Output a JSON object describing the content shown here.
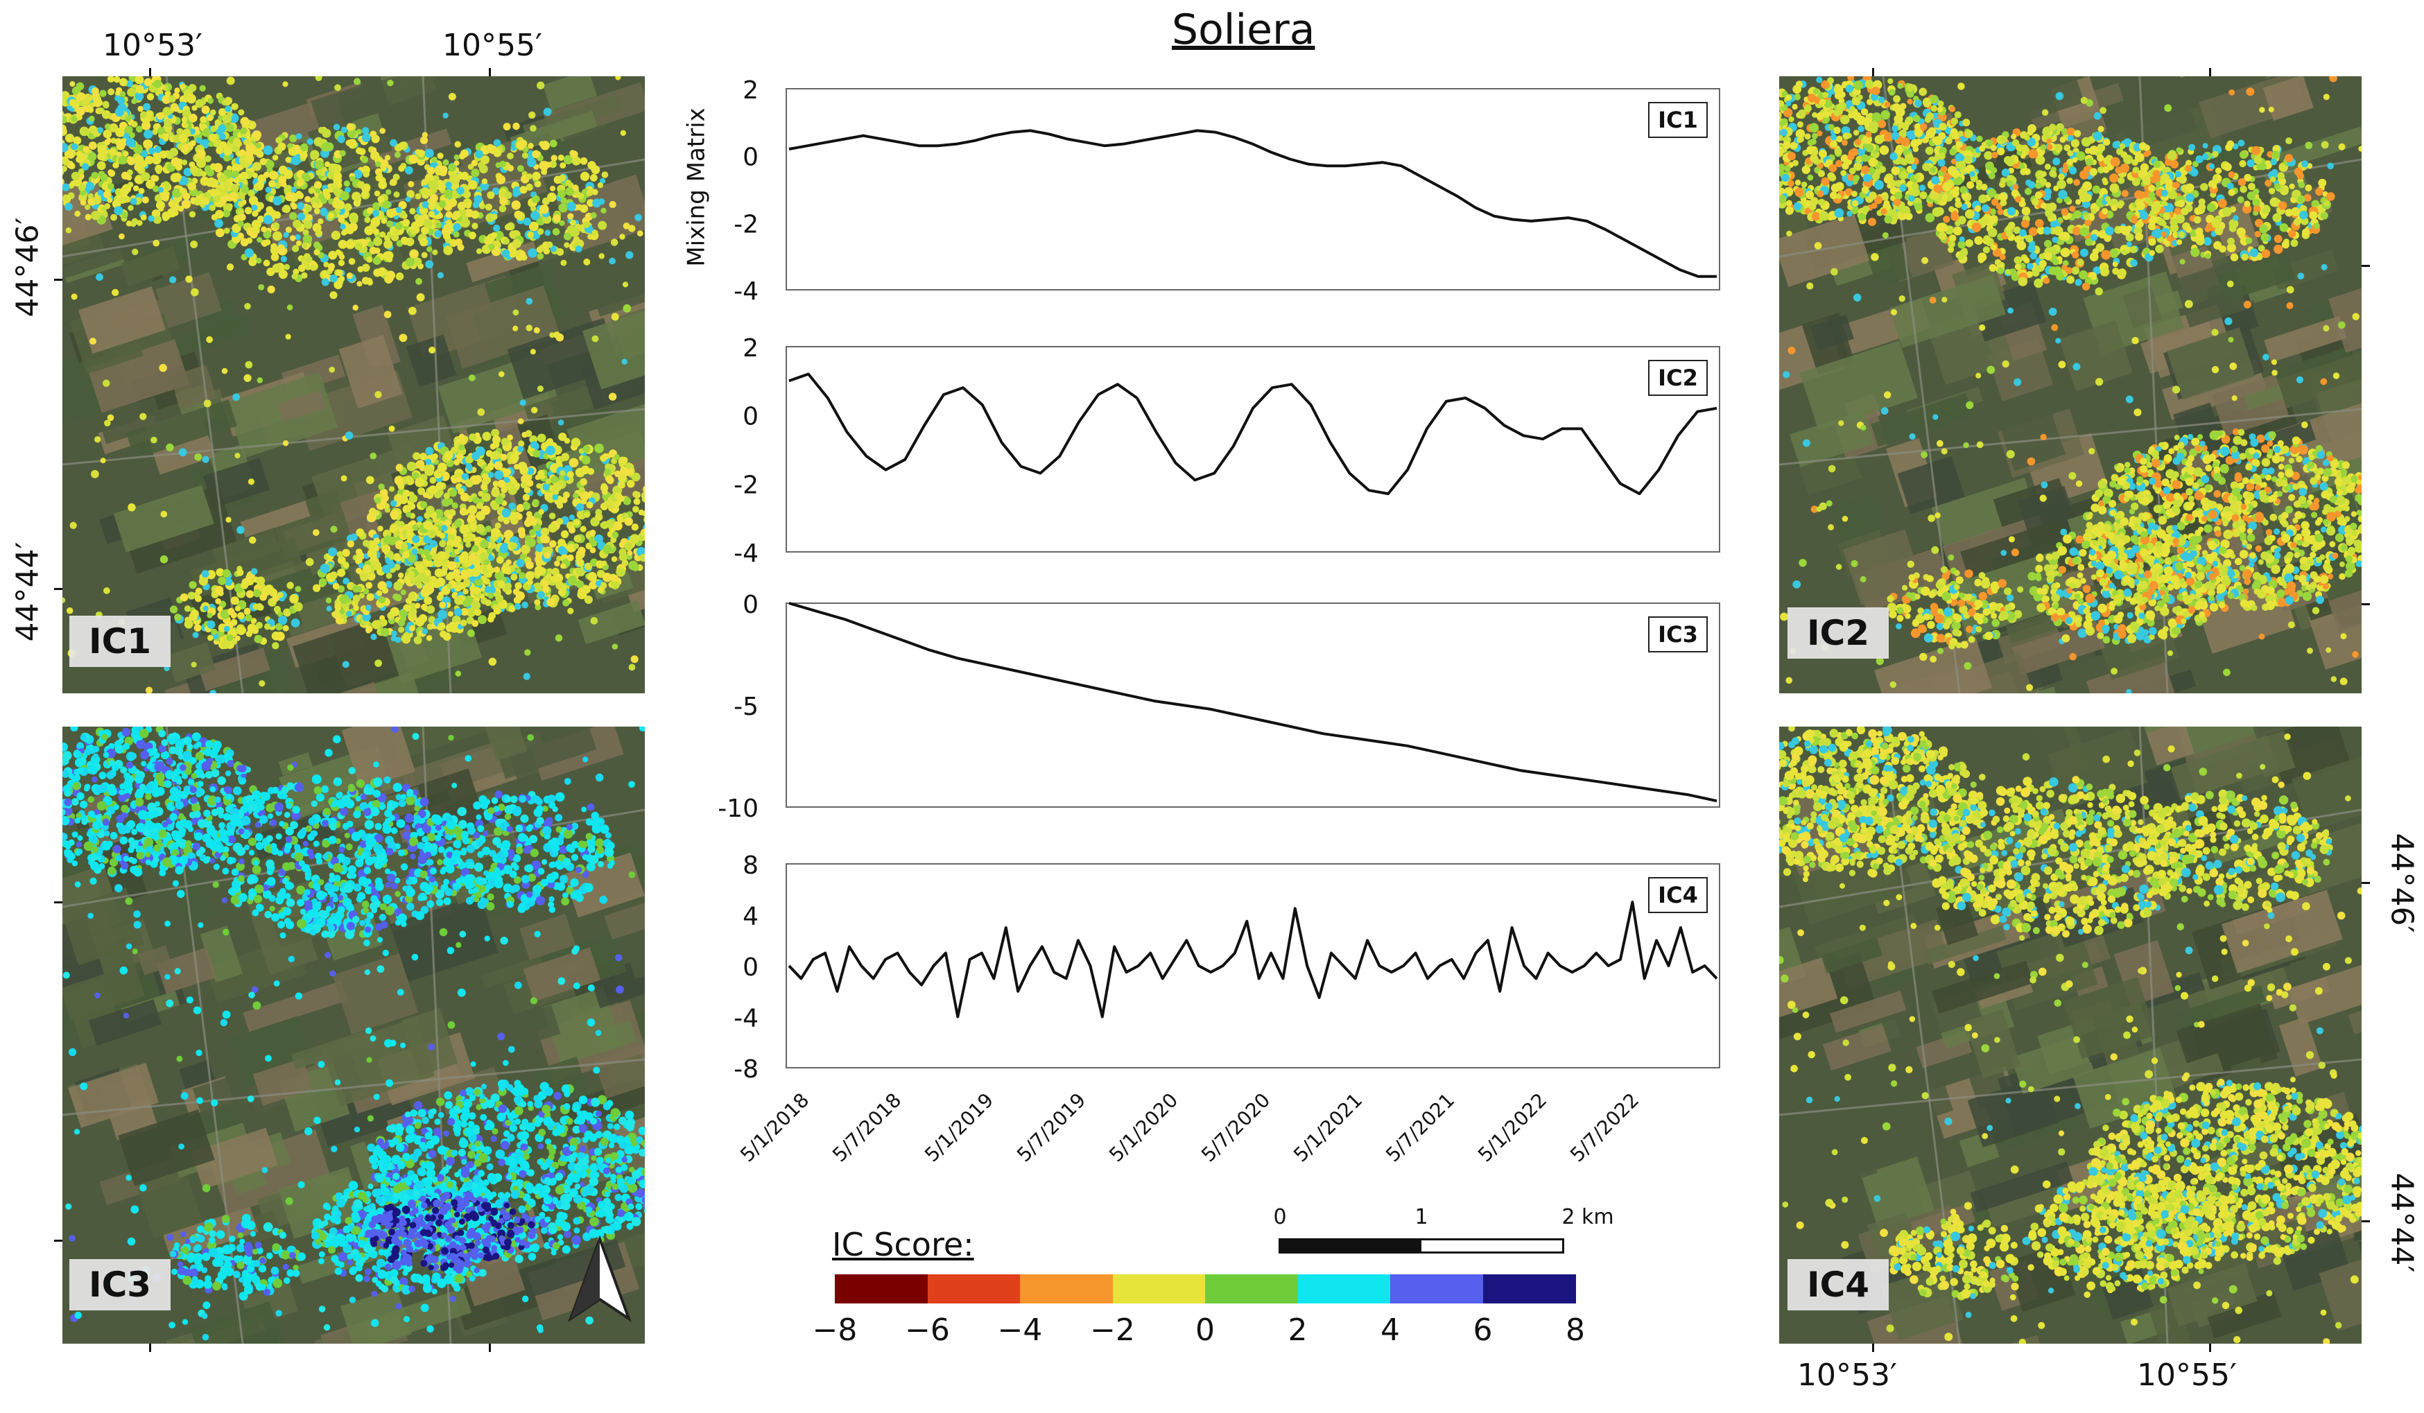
{
  "title": "Soliera",
  "maps": [
    {
      "id": "IC1",
      "label": "IC1"
    },
    {
      "id": "IC2",
      "label": "IC2"
    },
    {
      "id": "IC3",
      "label": "IC3"
    },
    {
      "id": "IC4",
      "label": "IC4"
    }
  ],
  "coords": {
    "lon_west": "10°53′",
    "lon_east": "10°55′",
    "lat_north": "44°46′",
    "lat_south": "44°44′"
  },
  "chart_data": {
    "type": "line",
    "ylabel": "Mixing Matrix",
    "x_tick_labels": [
      "5/1/2018",
      "5/7/2018",
      "5/1/2019",
      "5/7/2019",
      "5/1/2020",
      "5/7/2020",
      "5/1/2021",
      "5/7/2021",
      "5/1/2022",
      "5/7/2022"
    ],
    "panels": [
      {
        "name": "IC1",
        "ylim": [
          -4,
          2
        ],
        "yticks": [
          "2",
          "0",
          "-2",
          "-4"
        ],
        "values": [
          0.2,
          0.3,
          0.4,
          0.5,
          0.6,
          0.5,
          0.4,
          0.3,
          0.3,
          0.35,
          0.45,
          0.6,
          0.7,
          0.75,
          0.65,
          0.5,
          0.4,
          0.3,
          0.35,
          0.45,
          0.55,
          0.65,
          0.75,
          0.7,
          0.55,
          0.35,
          0.1,
          -0.1,
          -0.25,
          -0.3,
          -0.3,
          -0.25,
          -0.2,
          -0.3,
          -0.6,
          -0.9,
          -1.2,
          -1.55,
          -1.8,
          -1.9,
          -1.95,
          -1.9,
          -1.85,
          -1.95,
          -2.2,
          -2.5,
          -2.8,
          -3.1,
          -3.4,
          -3.6,
          -3.6
        ]
      },
      {
        "name": "IC2",
        "ylim": [
          -4,
          2
        ],
        "yticks": [
          "2",
          "0",
          "-2",
          "-4"
        ],
        "values": [
          1.0,
          1.2,
          0.5,
          -0.5,
          -1.2,
          -1.6,
          -1.3,
          -0.3,
          0.6,
          0.8,
          0.3,
          -0.8,
          -1.5,
          -1.7,
          -1.2,
          -0.2,
          0.6,
          0.9,
          0.5,
          -0.5,
          -1.4,
          -1.9,
          -1.7,
          -0.9,
          0.2,
          0.8,
          0.9,
          0.3,
          -0.8,
          -1.7,
          -2.2,
          -2.3,
          -1.6,
          -0.4,
          0.4,
          0.5,
          0.2,
          -0.3,
          -0.6,
          -0.7,
          -0.4,
          -0.4,
          -1.2,
          -2.0,
          -2.3,
          -1.6,
          -0.6,
          0.1,
          0.2
        ]
      },
      {
        "name": "IC3",
        "ylim": [
          -10,
          0
        ],
        "yticks": [
          "0",
          "-5",
          "-10"
        ],
        "values": [
          0,
          -0.4,
          -0.8,
          -1.3,
          -1.8,
          -2.3,
          -2.7,
          -3.0,
          -3.3,
          -3.6,
          -3.9,
          -4.2,
          -4.5,
          -4.8,
          -5.0,
          -5.2,
          -5.5,
          -5.8,
          -6.1,
          -6.4,
          -6.6,
          -6.8,
          -7.0,
          -7.3,
          -7.6,
          -7.9,
          -8.2,
          -8.4,
          -8.6,
          -8.8,
          -9.0,
          -9.2,
          -9.4,
          -9.7
        ]
      },
      {
        "name": "IC4",
        "ylim": [
          -8,
          8
        ],
        "yticks": [
          "8",
          "4",
          "0",
          "-4",
          "-8"
        ],
        "values": [
          0,
          -1,
          0.5,
          1,
          -2,
          1.5,
          0,
          -1,
          0.5,
          1,
          -0.5,
          -1.5,
          0,
          1,
          -4,
          0.5,
          1,
          -1,
          3,
          -2,
          0,
          1.5,
          -0.5,
          -1,
          2,
          0,
          -4,
          1.5,
          -0.5,
          0,
          1,
          -1,
          0.5,
          2,
          0,
          -0.5,
          0,
          1,
          3.5,
          -1,
          1,
          -1,
          4.5,
          0,
          -2.5,
          1,
          0,
          -1,
          2,
          0,
          -0.5,
          0,
          1,
          -1,
          0,
          0.5,
          -1,
          1,
          2,
          -2,
          3,
          0,
          -1,
          1,
          0,
          -0.5,
          0,
          1,
          0,
          0.5,
          5,
          -1,
          2,
          0,
          3,
          -0.5,
          0,
          -1
        ]
      }
    ]
  },
  "colorbar": {
    "title": "IC Score:",
    "colors": [
      "#7a0000",
      "#e0401a",
      "#f7962c",
      "#e6e43a",
      "#6fcd3a",
      "#10e6f0",
      "#5560ee",
      "#1a1480"
    ],
    "ticks": [
      "−8",
      "−6",
      "−4",
      "−2",
      "0",
      "2",
      "4",
      "6",
      "8"
    ]
  },
  "scalebar": {
    "labels": [
      "0",
      "1",
      "2 km"
    ]
  },
  "north_arrow": "north-arrow"
}
